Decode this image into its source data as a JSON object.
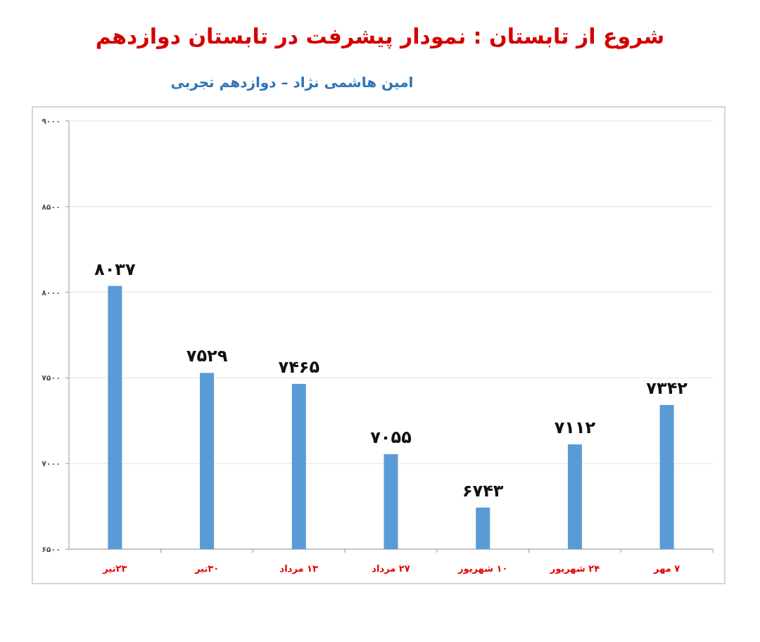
{
  "chart_data": {
    "type": "bar",
    "title": "شروع از تابستان : نمودار پیشرفت در تابستان دوازدهم",
    "subtitle": "امین هاشمی نژاد – دوازدهم تجربی",
    "categories": [
      "۲۳تیر",
      "۳۰تیر",
      "۱۳ مرداد",
      "۲۷ مرداد",
      "۱۰ شهریور",
      "۲۴ شهریور",
      "۷ مهر"
    ],
    "values": [
      8037,
      7529,
      7465,
      7055,
      6743,
      7112,
      7342
    ],
    "value_labels": [
      "۸۰۳۷",
      "۷۵۲۹",
      "۷۴۶۵",
      "۷۰۵۵",
      "۶۷۴۳",
      "۷۱۱۲",
      "۷۳۴۲"
    ],
    "color": "#5b9bd5",
    "ylim": [
      6500,
      9000
    ],
    "yticks": [
      {
        "value": 6500,
        "label": "۶۵۰۰"
      },
      {
        "value": 7000,
        "label": "۷۰۰۰"
      },
      {
        "value": 7500,
        "label": "۷۵۰۰"
      },
      {
        "value": 8000,
        "label": "۸۰۰۰"
      },
      {
        "value": 8500,
        "label": "۸۵۰۰"
      },
      {
        "value": 9000,
        "label": "۹۰۰۰"
      }
    ],
    "grid": "y"
  }
}
